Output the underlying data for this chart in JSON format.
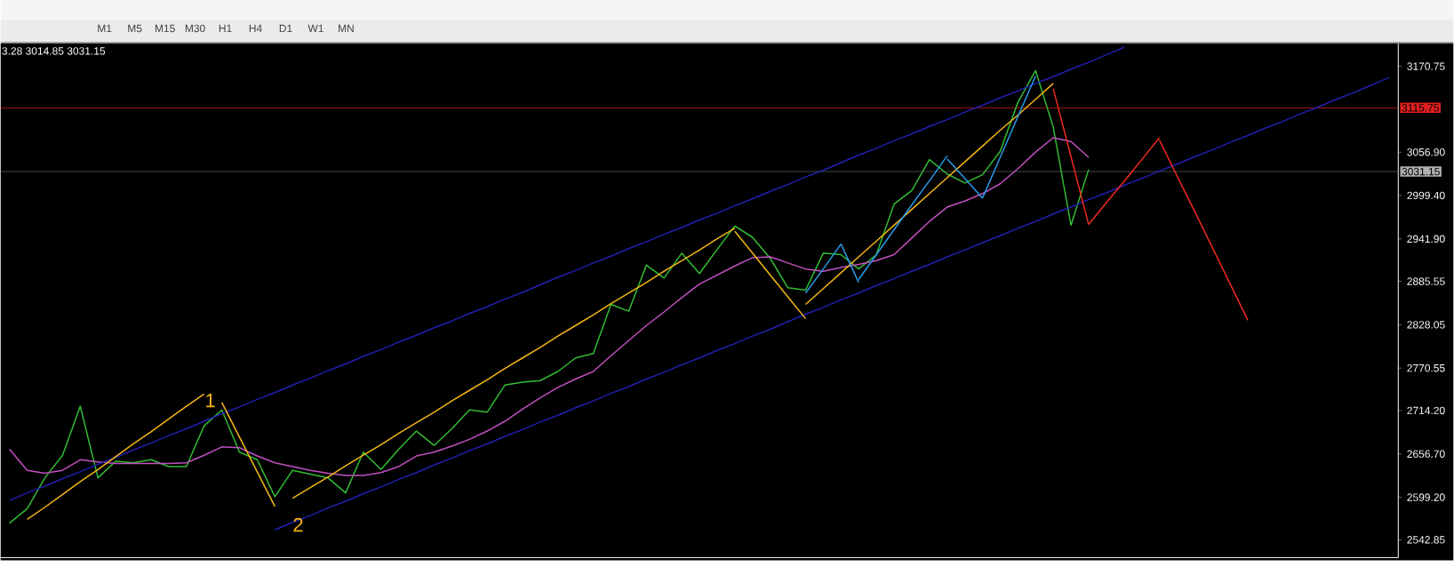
{
  "chart_data": {
    "type": "line",
    "categories": [
      null,
      null,
      null,
      null,
      null,
      null,
      null,
      null,
      null,
      null,
      null,
      null,
      null,
      null,
      null,
      null,
      null,
      null,
      null,
      null,
      null,
      null,
      null,
      null,
      null,
      null,
      null,
      null,
      null,
      null,
      null,
      null,
      null,
      null,
      null,
      null,
      null,
      null,
      null,
      null,
      null,
      null,
      null,
      null,
      null,
      null,
      null,
      null,
      null,
      null,
      null,
      null,
      null,
      null,
      null,
      null,
      null,
      null,
      null,
      null,
      null,
      null,
      null,
      null,
      null,
      null,
      null,
      null,
      null,
      null,
      null,
      null,
      null,
      null,
      null,
      null,
      null,
      null,
      null
    ],
    "series": [
      {
        "color": "#33bb33",
        "values": [
          2565,
          2584,
          2625,
          2655,
          2720,
          2625,
          2647,
          2645,
          2649,
          2640,
          2640,
          2694,
          2715,
          2659,
          2649,
          2600,
          2635,
          2630,
          2625,
          2605,
          2659,
          2636,
          2663,
          2687,
          2668,
          2690,
          2715,
          2712,
          2748,
          2752,
          2754,
          2766,
          2784,
          2790,
          2855,
          2846,
          2907,
          2890,
          2923,
          2896,
          2928,
          2959,
          2944,
          2916,
          2877,
          2874,
          2923,
          2921,
          2902,
          2921,
          2988,
          3006,
          3047,
          3028,
          3016,
          3027,
          3058,
          3123,
          3165,
          3090,
          2960,
          3034,
          null,
          null,
          null,
          null,
          null,
          null,
          null,
          null,
          null,
          null,
          null,
          null,
          null,
          null,
          null,
          null,
          null
        ]
      },
      {
        "color": "#c050c0",
        "values": [
          2663,
          2635,
          2631,
          2635,
          2649,
          2646,
          2644,
          2644,
          2644,
          2644,
          2645,
          2655,
          2666,
          2665,
          2654,
          2645,
          2640,
          2635,
          2631,
          2628,
          2628,
          2632,
          2640,
          2654,
          2659,
          2667,
          2676,
          2687,
          2700,
          2716,
          2731,
          2745,
          2756,
          2766,
          2787,
          2807,
          2827,
          2845,
          2864,
          2882,
          2894,
          2906,
          2917,
          2918,
          2910,
          2902,
          2899,
          2904,
          2908,
          2913,
          2921,
          2943,
          2965,
          2984,
          2992,
          3002,
          3015,
          3035,
          3057,
          3076,
          3071,
          3050,
          null,
          null,
          null,
          null,
          null,
          null,
          null,
          null,
          null,
          null,
          null,
          null,
          null,
          null,
          null,
          null,
          null
        ]
      },
      {
        "color": "#2020b0",
        "values": [
          2595,
          2605,
          2614,
          2624,
          2633,
          2643,
          2652,
          2662,
          2671,
          2681,
          2690,
          2700,
          2710,
          2719,
          2729,
          2738,
          2748,
          2757,
          2767,
          2776,
          2786,
          2795,
          2805,
          2814,
          2824,
          2833,
          2843,
          2852,
          2862,
          2871,
          2881,
          2891,
          2900,
          2910,
          2919,
          2929,
          2938,
          2948,
          2957,
          2967,
          2976,
          2986,
          2995,
          3005,
          3014,
          3024,
          3033,
          3043,
          3053,
          3062,
          3072,
          3081,
          3091,
          3100,
          3110,
          3119,
          3129,
          3138,
          3148,
          3157,
          3167,
          3176,
          3186,
          3196,
          null,
          null,
          null,
          null,
          null,
          null,
          null,
          null,
          null,
          null,
          null,
          null,
          null,
          null,
          null
        ]
      },
      {
        "color": "#2020b0",
        "values": [
          null,
          null,
          null,
          null,
          null,
          null,
          null,
          null,
          null,
          null,
          null,
          null,
          null,
          null,
          null,
          2556,
          2566,
          2575,
          2585,
          2594,
          2604,
          2613,
          2623,
          2632,
          2642,
          2651,
          2661,
          2670,
          2680,
          2689,
          2699,
          2708,
          2718,
          2727,
          2737,
          2746,
          2756,
          2765,
          2775,
          2784,
          2794,
          2803,
          2813,
          2822,
          2832,
          2842,
          2851,
          2861,
          2870,
          2880,
          2889,
          2899,
          2908,
          2918,
          2927,
          2937,
          2946,
          2956,
          2965,
          2975,
          2984,
          2994,
          3003,
          3013,
          3022,
          3032,
          3041,
          3051,
          3060,
          3070,
          3079,
          3089,
          3098,
          3108,
          3117,
          3127,
          3136,
          3146,
          3156
        ]
      },
      {
        "color": "#f5b616",
        "values": [
          null,
          2570,
          2586,
          2603,
          2620,
          2636,
          2653,
          2670,
          2686,
          2703,
          2720,
          2736,
          null,
          null,
          null,
          null,
          null,
          null,
          null,
          null,
          null,
          null,
          null,
          null,
          null,
          null,
          null,
          null,
          null,
          null,
          null,
          null,
          null,
          null,
          null,
          null,
          null,
          null,
          null,
          null,
          null,
          null,
          null,
          null,
          null,
          null,
          null,
          null,
          null,
          null,
          null,
          null,
          null,
          null,
          null,
          null,
          null,
          null,
          null,
          null,
          null,
          null,
          null,
          null,
          null,
          null,
          null,
          null,
          null,
          null,
          null,
          null,
          null,
          null,
          null,
          null,
          null,
          null,
          null
        ]
      },
      {
        "color": "#f5b616",
        "values": [
          null,
          null,
          null,
          null,
          null,
          null,
          null,
          null,
          null,
          null,
          null,
          null,
          2725,
          2679,
          2633,
          2587,
          null,
          null,
          null,
          null,
          null,
          null,
          null,
          null,
          null,
          null,
          null,
          null,
          null,
          null,
          null,
          null,
          null,
          null,
          null,
          null,
          null,
          null,
          null,
          null,
          null,
          null,
          null,
          null,
          null,
          null,
          null,
          null,
          null,
          null,
          null,
          null,
          null,
          null,
          null,
          null,
          null,
          null,
          null,
          null,
          null,
          null,
          null,
          null,
          null,
          null,
          null,
          null,
          null,
          null,
          null,
          null,
          null,
          null,
          null,
          null,
          null,
          null,
          null
        ]
      },
      {
        "color": "#f5b616",
        "values": [
          null,
          null,
          null,
          null,
          null,
          null,
          null,
          null,
          null,
          null,
          null,
          null,
          null,
          null,
          null,
          null,
          2598,
          2612,
          2626,
          2641,
          2655,
          2669,
          2684,
          2698,
          2712,
          2727,
          2741,
          2755,
          2770,
          2784,
          2798,
          2813,
          2827,
          2841,
          2856,
          2870,
          2884,
          2899,
          2913,
          2927,
          2942,
          2956,
          null,
          null,
          null,
          null,
          null,
          null,
          null,
          null,
          null,
          null,
          null,
          null,
          null,
          null,
          null,
          null,
          null,
          null,
          null,
          null,
          null,
          null,
          null,
          null,
          null,
          null,
          null,
          null,
          null,
          null,
          null,
          null,
          null,
          null,
          null,
          null,
          null
        ]
      },
      {
        "color": "#f5b616",
        "values": [
          null,
          null,
          null,
          null,
          null,
          null,
          null,
          null,
          null,
          null,
          null,
          null,
          null,
          null,
          null,
          null,
          null,
          null,
          null,
          null,
          null,
          null,
          null,
          null,
          null,
          null,
          null,
          null,
          null,
          null,
          null,
          null,
          null,
          null,
          null,
          null,
          null,
          null,
          null,
          null,
          null,
          2952,
          2923,
          2894,
          2865,
          2836,
          null,
          null,
          null,
          null,
          null,
          null,
          null,
          null,
          null,
          null,
          null,
          null,
          null,
          null,
          null,
          null,
          null,
          null,
          null,
          null,
          null,
          null,
          null,
          null,
          null,
          null,
          null,
          null,
          null,
          null,
          null,
          null,
          null
        ]
      },
      {
        "color": "#f5b616",
        "values": [
          null,
          null,
          null,
          null,
          null,
          null,
          null,
          null,
          null,
          null,
          null,
          null,
          null,
          null,
          null,
          null,
          null,
          null,
          null,
          null,
          null,
          null,
          null,
          null,
          null,
          null,
          null,
          null,
          null,
          null,
          null,
          null,
          null,
          null,
          null,
          null,
          null,
          null,
          null,
          null,
          null,
          null,
          null,
          null,
          null,
          2855,
          2876,
          2897,
          2918,
          2939,
          2960,
          2981,
          3002,
          3023,
          3044,
          3065,
          3086,
          3106,
          3127,
          3148,
          null,
          null,
          null,
          null,
          null,
          null,
          null,
          null,
          null,
          null,
          null,
          null,
          null,
          null,
          null,
          null,
          null,
          null,
          null
        ]
      },
      {
        "color": "#2a9be8",
        "values": [
          null,
          null,
          null,
          null,
          null,
          null,
          null,
          null,
          null,
          null,
          null,
          null,
          null,
          null,
          null,
          null,
          null,
          null,
          null,
          null,
          null,
          null,
          null,
          null,
          null,
          null,
          null,
          null,
          null,
          null,
          null,
          null,
          null,
          null,
          null,
          null,
          null,
          null,
          null,
          null,
          null,
          null,
          null,
          null,
          null,
          2870,
          2902,
          2935,
          null,
          null,
          null,
          null,
          null,
          null,
          null,
          null,
          null,
          null,
          null,
          null,
          null,
          null,
          null,
          null,
          null,
          null,
          null,
          null,
          null,
          null,
          null,
          null,
          null,
          null,
          null,
          null,
          null,
          null,
          null
        ]
      },
      {
        "color": "#2a9be8",
        "values": [
          null,
          null,
          null,
          null,
          null,
          null,
          null,
          null,
          null,
          null,
          null,
          null,
          null,
          null,
          null,
          null,
          null,
          null,
          null,
          null,
          null,
          null,
          null,
          null,
          null,
          null,
          null,
          null,
          null,
          null,
          null,
          null,
          null,
          null,
          null,
          null,
          null,
          null,
          null,
          null,
          null,
          null,
          null,
          null,
          null,
          null,
          null,
          2935,
          2884,
          null,
          null,
          null,
          null,
          null,
          null,
          null,
          null,
          null,
          null,
          null,
          null,
          null,
          null,
          null,
          null,
          null,
          null,
          null,
          null,
          null,
          null,
          null,
          null,
          null,
          null,
          null,
          null,
          null,
          null
        ]
      },
      {
        "color": "#2a9be8",
        "values": [
          null,
          null,
          null,
          null,
          null,
          null,
          null,
          null,
          null,
          null,
          null,
          null,
          null,
          null,
          null,
          null,
          null,
          null,
          null,
          null,
          null,
          null,
          null,
          null,
          null,
          null,
          null,
          null,
          null,
          null,
          null,
          null,
          null,
          null,
          null,
          null,
          null,
          null,
          null,
          null,
          null,
          null,
          null,
          null,
          null,
          null,
          null,
          null,
          2888,
          2921,
          2954,
          2987,
          3019,
          3052,
          null,
          null,
          null,
          null,
          null,
          null,
          null,
          null,
          null,
          null,
          null,
          null,
          null,
          null,
          null,
          null,
          null,
          null,
          null,
          null,
          null,
          null,
          null,
          null,
          null
        ]
      },
      {
        "color": "#2a9be8",
        "values": [
          null,
          null,
          null,
          null,
          null,
          null,
          null,
          null,
          null,
          null,
          null,
          null,
          null,
          null,
          null,
          null,
          null,
          null,
          null,
          null,
          null,
          null,
          null,
          null,
          null,
          null,
          null,
          null,
          null,
          null,
          null,
          null,
          null,
          null,
          null,
          null,
          null,
          null,
          null,
          null,
          null,
          null,
          null,
          null,
          null,
          null,
          null,
          null,
          null,
          null,
          null,
          null,
          null,
          3048,
          3022,
          2996,
          null,
          null,
          null,
          null,
          null,
          null,
          null,
          null,
          null,
          null,
          null,
          null,
          null,
          null,
          null,
          null,
          null,
          null,
          null,
          null,
          null,
          null,
          null
        ]
      },
      {
        "color": "#2a9be8",
        "values": [
          null,
          null,
          null,
          null,
          null,
          null,
          null,
          null,
          null,
          null,
          null,
          null,
          null,
          null,
          null,
          null,
          null,
          null,
          null,
          null,
          null,
          null,
          null,
          null,
          null,
          null,
          null,
          null,
          null,
          null,
          null,
          null,
          null,
          null,
          null,
          null,
          null,
          null,
          null,
          null,
          null,
          null,
          null,
          null,
          null,
          null,
          null,
          null,
          null,
          null,
          null,
          null,
          null,
          null,
          null,
          2996,
          3050,
          3104,
          3158,
          null,
          null,
          null,
          null,
          null,
          null,
          null,
          null,
          null,
          null,
          null,
          null,
          null,
          null,
          null,
          null,
          null,
          null,
          null,
          null
        ]
      },
      {
        "color": "#f02a1e",
        "values": [
          null,
          null,
          null,
          null,
          null,
          null,
          null,
          null,
          null,
          null,
          null,
          null,
          null,
          null,
          null,
          null,
          null,
          null,
          null,
          null,
          null,
          null,
          null,
          null,
          null,
          null,
          null,
          null,
          null,
          null,
          null,
          null,
          null,
          null,
          null,
          null,
          null,
          null,
          null,
          null,
          null,
          null,
          null,
          null,
          null,
          null,
          null,
          null,
          null,
          null,
          null,
          null,
          null,
          null,
          null,
          null,
          null,
          null,
          null,
          3141,
          3051,
          2961,
          null,
          null,
          null,
          null,
          null,
          null,
          null,
          null,
          null,
          null,
          null,
          null,
          null,
          null,
          null,
          null,
          null
        ]
      },
      {
        "color": "#f02a1e",
        "values": [
          null,
          null,
          null,
          null,
          null,
          null,
          null,
          null,
          null,
          null,
          null,
          null,
          null,
          null,
          null,
          null,
          null,
          null,
          null,
          null,
          null,
          null,
          null,
          null,
          null,
          null,
          null,
          null,
          null,
          null,
          null,
          null,
          null,
          null,
          null,
          null,
          null,
          null,
          null,
          null,
          null,
          null,
          null,
          null,
          null,
          null,
          null,
          null,
          null,
          null,
          null,
          null,
          null,
          null,
          null,
          null,
          null,
          null,
          null,
          null,
          null,
          2961,
          2990,
          3018,
          3047,
          3076,
          null,
          null,
          null,
          null,
          null,
          null,
          null,
          null,
          null,
          null,
          null,
          null,
          null
        ]
      },
      {
        "color": "#f02a1e",
        "values": [
          null,
          null,
          null,
          null,
          null,
          null,
          null,
          null,
          null,
          null,
          null,
          null,
          null,
          null,
          null,
          null,
          null,
          null,
          null,
          null,
          null,
          null,
          null,
          null,
          null,
          null,
          null,
          null,
          null,
          null,
          null,
          null,
          null,
          null,
          null,
          null,
          null,
          null,
          null,
          null,
          null,
          null,
          null,
          null,
          null,
          null,
          null,
          null,
          null,
          null,
          null,
          null,
          null,
          null,
          null,
          null,
          null,
          null,
          null,
          null,
          null,
          null,
          null,
          null,
          null,
          3073,
          3025,
          2978,
          2930,
          2882,
          2834,
          null,
          null,
          null,
          null,
          null,
          null,
          null,
          null
        ]
      }
    ],
    "ylim": [
      2519.2,
      3201.0
    ],
    "yticks": [
      {
        "value": 3170.75,
        "label": "3170.75"
      },
      {
        "value": 3056.9,
        "label": "3056.90"
      },
      {
        "value": 2999.4,
        "label": "2999.40"
      },
      {
        "value": 2941.9,
        "label": "2941.90"
      },
      {
        "value": 2885.55,
        "label": "2885.55"
      },
      {
        "value": 2828.05,
        "label": "2828.05"
      },
      {
        "value": 2770.55,
        "label": "2770.55"
      },
      {
        "value": 2714.2,
        "label": "2714.20"
      },
      {
        "value": 2656.7,
        "label": "2656.70"
      },
      {
        "value": 2599.2,
        "label": "2599.20"
      },
      {
        "value": 2542.85,
        "label": "2542.85"
      }
    ],
    "tick_labels": "y",
    "ref_lines": [
      {
        "axis": "y",
        "value": 3115.75,
        "label": "3115.75",
        "color": "#e02020"
      },
      {
        "axis": "y",
        "value": 3031.15,
        "label": "3031.15",
        "color": "#b0b0b0"
      }
    ],
    "annotations": [
      "3.28 3014.85 3031.15",
      "M1",
      "M5",
      "M15",
      "M30",
      "H1",
      "H4",
      "D1",
      "W1",
      "MN",
      "1",
      "2"
    ]
  }
}
